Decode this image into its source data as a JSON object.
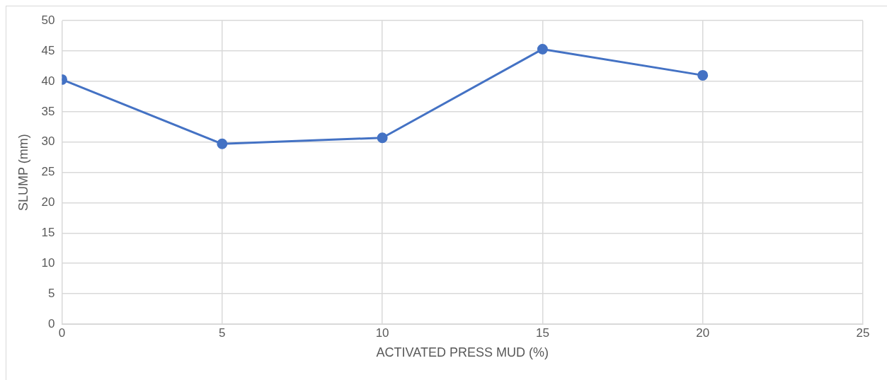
{
  "chart_data": {
    "type": "line",
    "xlabel": "ACTIVATED PRESS MUD (%)",
    "ylabel": "SLUMP (mm)",
    "x": [
      0,
      5,
      10,
      15,
      20
    ],
    "series": [
      {
        "color": "#4472c4",
        "values": [
          40.3,
          29.7,
          30.7,
          45.3,
          41.0
        ]
      }
    ],
    "xlim": [
      0,
      25
    ],
    "xticks": [
      0,
      5,
      10,
      15,
      20,
      25
    ],
    "ylim": [
      0,
      50
    ],
    "yticks": [
      0,
      5,
      10,
      15,
      20,
      25,
      30,
      35,
      40,
      45,
      50
    ],
    "grid": true,
    "legend": false,
    "marker": "circle",
    "line_style": "solid"
  }
}
